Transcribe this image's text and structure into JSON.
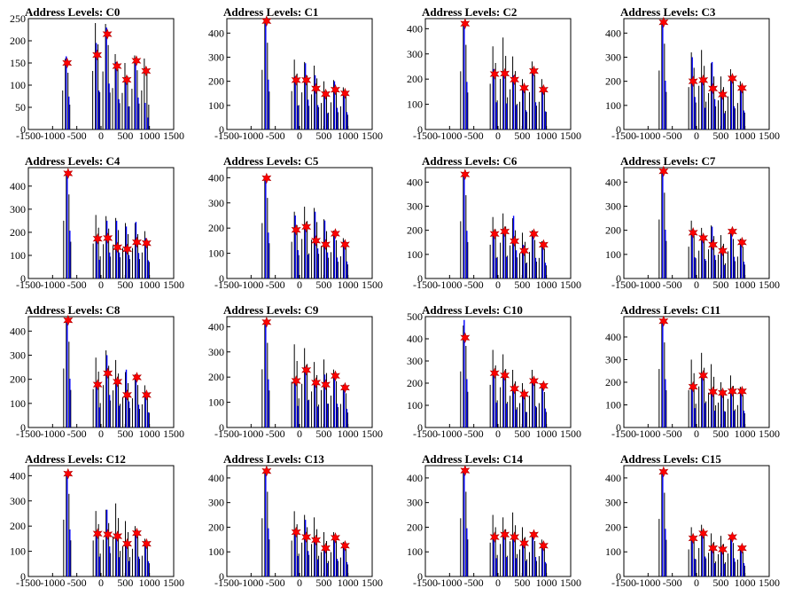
{
  "page": {
    "background": "#ffffff",
    "layout": {
      "rows": 4,
      "cols": 4
    }
  },
  "colors": {
    "black_series": "#000000",
    "blue_series": "#0000ff",
    "marker": "#ff0000",
    "axis": "#000000"
  },
  "chart_data": [
    {
      "type": "bar",
      "title": "Address Levels: C0",
      "xlim": [
        -1500,
        1500
      ],
      "ylim": [
        0,
        250
      ],
      "xticks": [
        -1500,
        -1000,
        -500,
        0,
        500,
        1000,
        1500
      ],
      "yticks": [
        0,
        50,
        100,
        150,
        200,
        250
      ],
      "peaks_x": [
        -700,
        -80,
        130,
        330,
        530,
        730,
        930
      ],
      "peaks_y": [
        150,
        168,
        215,
        143,
        112,
        155,
        132
      ],
      "black_heights": [
        160,
        240,
        238,
        170,
        150,
        167,
        160
      ],
      "blue_heights": [
        165,
        195,
        230,
        152,
        115,
        160,
        60
      ],
      "series": [
        {
          "name": "black"
        },
        {
          "name": "blue"
        }
      ]
    },
    {
      "type": "bar",
      "title": "Address Levels: C1",
      "xlim": [
        -1500,
        1500
      ],
      "ylim": [
        0,
        460
      ],
      "xticks": [
        -1500,
        -1000,
        -500,
        0,
        500,
        1000,
        1500
      ],
      "yticks": [
        0,
        100,
        200,
        300,
        400
      ],
      "peaks_x": [
        -680,
        -70,
        140,
        340,
        540,
        740,
        940
      ],
      "peaks_y": [
        450,
        205,
        205,
        170,
        147,
        165,
        150
      ],
      "black_heights": [
        450,
        290,
        280,
        265,
        200,
        205,
        175
      ],
      "blue_heights": [
        460,
        220,
        275,
        225,
        150,
        200,
        160
      ]
    },
    {
      "type": "bar",
      "title": "Address Levels: C2",
      "xlim": [
        -1500,
        1500
      ],
      "ylim": [
        0,
        440
      ],
      "xticks": [
        -1500,
        -1000,
        -500,
        0,
        500,
        1000,
        1500
      ],
      "yticks": [
        0,
        100,
        200,
        300,
        400
      ],
      "peaks_x": [
        -680,
        -70,
        140,
        340,
        540,
        740,
        940
      ],
      "peaks_y": [
        420,
        220,
        222,
        198,
        165,
        232,
        158
      ],
      "black_heights": [
        420,
        330,
        365,
        290,
        200,
        270,
        200
      ],
      "blue_heights": [
        420,
        240,
        230,
        215,
        170,
        240,
        160
      ]
    },
    {
      "type": "bar",
      "title": "Address Levels: C3",
      "xlim": [
        -1500,
        1500
      ],
      "ylim": [
        0,
        460
      ],
      "xticks": [
        -1500,
        -1000,
        -500,
        0,
        500,
        1000,
        1500
      ],
      "yticks": [
        0,
        100,
        200,
        300,
        400
      ],
      "peaks_x": [
        -680,
        -70,
        140,
        340,
        540,
        740,
        940
      ],
      "peaks_y": [
        445,
        200,
        205,
        170,
        145,
        212,
        172
      ],
      "black_heights": [
        445,
        320,
        330,
        275,
        220,
        250,
        200
      ],
      "blue_heights": [
        450,
        300,
        200,
        280,
        150,
        215,
        175
      ]
    },
    {
      "type": "bar",
      "title": "Address Levels: C4",
      "xlim": [
        -1500,
        1500
      ],
      "ylim": [
        0,
        480
      ],
      "xticks": [
        -1500,
        -1000,
        -500,
        0,
        500,
        1000,
        1500
      ],
      "yticks": [
        0,
        100,
        200,
        300,
        400
      ],
      "peaks_x": [
        -680,
        -70,
        140,
        340,
        540,
        740,
        940
      ],
      "peaks_y": [
        455,
        172,
        175,
        135,
        127,
        157,
        153
      ],
      "black_heights": [
        455,
        275,
        270,
        262,
        240,
        240,
        205
      ],
      "blue_heights": [
        460,
        180,
        250,
        250,
        225,
        245,
        175
      ]
    },
    {
      "type": "bar",
      "title": "Address Levels: C5",
      "xlim": [
        -1500,
        1500
      ],
      "ylim": [
        0,
        440
      ],
      "xticks": [
        -1500,
        -1000,
        -500,
        0,
        500,
        1000,
        1500
      ],
      "yticks": [
        0,
        100,
        200,
        300,
        400
      ],
      "peaks_x": [
        -680,
        -70,
        140,
        340,
        540,
        740,
        940
      ],
      "peaks_y": [
        398,
        193,
        205,
        150,
        135,
        178,
        135
      ],
      "black_heights": [
        400,
        265,
        285,
        280,
        235,
        190,
        160
      ],
      "blue_heights": [
        405,
        250,
        210,
        265,
        230,
        185,
        150
      ]
    },
    {
      "type": "bar",
      "title": "Address Levels: C6",
      "xlim": [
        -1500,
        1500
      ],
      "ylim": [
        0,
        460
      ],
      "xticks": [
        -1500,
        -1000,
        -500,
        0,
        500,
        1000,
        1500
      ],
      "yticks": [
        0,
        100,
        200,
        300,
        400
      ],
      "peaks_x": [
        -680,
        -70,
        140,
        340,
        540,
        740,
        940
      ],
      "peaks_y": [
        432,
        185,
        195,
        155,
        115,
        185,
        140
      ],
      "black_heights": [
        432,
        255,
        270,
        250,
        190,
        200,
        155
      ],
      "blue_heights": [
        440,
        190,
        200,
        260,
        140,
        190,
        145
      ]
    },
    {
      "type": "bar",
      "title": "Address Levels: C7",
      "xlim": [
        -1500,
        1500
      ],
      "ylim": [
        0,
        460
      ],
      "xticks": [
        -1500,
        -1000,
        -500,
        0,
        500,
        1000,
        1500
      ],
      "yticks": [
        0,
        100,
        200,
        300,
        400
      ],
      "peaks_x": [
        -680,
        -70,
        140,
        340,
        540,
        740,
        940
      ],
      "peaks_y": [
        445,
        190,
        168,
        140,
        115,
        195,
        150
      ],
      "black_heights": [
        445,
        240,
        210,
        220,
        180,
        205,
        165
      ],
      "blue_heights": [
        450,
        195,
        180,
        215,
        125,
        200,
        155
      ]
    },
    {
      "type": "bar",
      "title": "Address Levels: C8",
      "xlim": [
        -1500,
        1500
      ],
      "ylim": [
        0,
        460
      ],
      "xticks": [
        -1500,
        -1000,
        -500,
        0,
        500,
        1000,
        1500
      ],
      "yticks": [
        0,
        100,
        200,
        300,
        400
      ],
      "peaks_x": [
        -680,
        -70,
        140,
        340,
        540,
        740,
        940
      ],
      "peaks_y": [
        445,
        178,
        225,
        190,
        135,
        208,
        135
      ],
      "black_heights": [
        445,
        290,
        320,
        280,
        230,
        220,
        175
      ],
      "blue_heights": [
        450,
        185,
        300,
        200,
        240,
        210,
        140
      ]
    },
    {
      "type": "bar",
      "title": "Address Levels: C9",
      "xlim": [
        -1500,
        1500
      ],
      "ylim": [
        0,
        440
      ],
      "xticks": [
        -1500,
        -1000,
        -500,
        0,
        500,
        1000,
        1500
      ],
      "yticks": [
        0,
        100,
        200,
        300,
        400
      ],
      "peaks_x": [
        -680,
        -70,
        140,
        340,
        540,
        740,
        940
      ],
      "peaks_y": [
        418,
        185,
        228,
        178,
        170,
        205,
        158
      ],
      "black_heights": [
        420,
        330,
        315,
        260,
        270,
        230,
        170
      ],
      "blue_heights": [
        425,
        190,
        240,
        185,
        210,
        210,
        165
      ]
    },
    {
      "type": "bar",
      "title": "Address Levels: C10",
      "xlim": [
        -1500,
        1500
      ],
      "ylim": [
        0,
        500
      ],
      "xticks": [
        -1500,
        -1000,
        -500,
        0,
        500,
        1000,
        1500
      ],
      "yticks": [
        0,
        100,
        200,
        300,
        400,
        500
      ],
      "peaks_x": [
        -680,
        -70,
        140,
        340,
        540,
        740,
        940
      ],
      "peaks_y": [
        405,
        245,
        235,
        175,
        150,
        210,
        188
      ],
      "black_heights": [
        460,
        350,
        330,
        260,
        200,
        260,
        200
      ],
      "blue_heights": [
        485,
        250,
        240,
        180,
        155,
        215,
        190
      ]
    },
    {
      "type": "bar",
      "title": "Address Levels: C11",
      "xlim": [
        -1500,
        1500
      ],
      "ylim": [
        0,
        490
      ],
      "xticks": [
        -1500,
        -1000,
        -500,
        0,
        500,
        1000,
        1500
      ],
      "yticks": [
        0,
        100,
        200,
        300,
        400
      ],
      "peaks_x": [
        -680,
        -70,
        140,
        340,
        540,
        740,
        940
      ],
      "peaks_y": [
        470,
        180,
        230,
        158,
        153,
        160,
        160
      ],
      "black_heights": [
        470,
        300,
        330,
        280,
        200,
        230,
        180
      ],
      "blue_heights": [
        475,
        190,
        240,
        165,
        160,
        165,
        165
      ]
    },
    {
      "type": "bar",
      "title": "Address Levels: C12",
      "xlim": [
        -1500,
        1500
      ],
      "ylim": [
        0,
        440
      ],
      "xticks": [
        -1500,
        -1000,
        -500,
        0,
        500,
        1000,
        1500
      ],
      "yticks": [
        0,
        100,
        200,
        300,
        400
      ],
      "peaks_x": [
        -680,
        -70,
        140,
        340,
        540,
        740,
        940
      ],
      "peaks_y": [
        408,
        170,
        167,
        160,
        130,
        172,
        130
      ],
      "black_heights": [
        410,
        260,
        265,
        290,
        220,
        200,
        150
      ],
      "blue_heights": [
        415,
        175,
        265,
        170,
        135,
        175,
        135
      ]
    },
    {
      "type": "bar",
      "title": "Address Levels: C13",
      "xlim": [
        -1500,
        1500
      ],
      "ylim": [
        0,
        450
      ],
      "xticks": [
        -1500,
        -1000,
        -500,
        0,
        500,
        1000,
        1500
      ],
      "yticks": [
        0,
        100,
        200,
        300,
        400
      ],
      "peaks_x": [
        -680,
        -70,
        140,
        340,
        540,
        740,
        940
      ],
      "peaks_y": [
        428,
        180,
        160,
        148,
        115,
        157,
        125
      ],
      "black_heights": [
        430,
        265,
        250,
        240,
        180,
        180,
        140
      ],
      "blue_heights": [
        435,
        185,
        230,
        155,
        120,
        160,
        130
      ]
    },
    {
      "type": "bar",
      "title": "Address Levels: C14",
      "xlim": [
        -1500,
        1500
      ],
      "ylim": [
        0,
        450
      ],
      "xticks": [
        -1500,
        -1000,
        -500,
        0,
        500,
        1000,
        1500
      ],
      "yticks": [
        0,
        100,
        200,
        300,
        400
      ],
      "peaks_x": [
        -680,
        -70,
        140,
        340,
        540,
        740,
        940
      ],
      "peaks_y": [
        430,
        160,
        170,
        160,
        135,
        170,
        125
      ],
      "black_heights": [
        430,
        250,
        240,
        260,
        200,
        180,
        150
      ],
      "blue_heights": [
        435,
        165,
        175,
        165,
        140,
        175,
        130
      ]
    },
    {
      "type": "bar",
      "title": "Address Levels: C15",
      "xlim": [
        -1500,
        1500
      ],
      "ylim": [
        0,
        450
      ],
      "xticks": [
        -1500,
        -1000,
        -500,
        0,
        500,
        1000,
        1500
      ],
      "yticks": [
        0,
        100,
        200,
        300,
        400
      ],
      "peaks_x": [
        -680,
        -70,
        140,
        340,
        540,
        740,
        940
      ],
      "peaks_y": [
        425,
        155,
        175,
        115,
        110,
        160,
        115
      ],
      "black_heights": [
        425,
        200,
        210,
        175,
        165,
        170,
        125
      ],
      "blue_heights": [
        430,
        160,
        180,
        120,
        115,
        165,
        120
      ]
    }
  ]
}
